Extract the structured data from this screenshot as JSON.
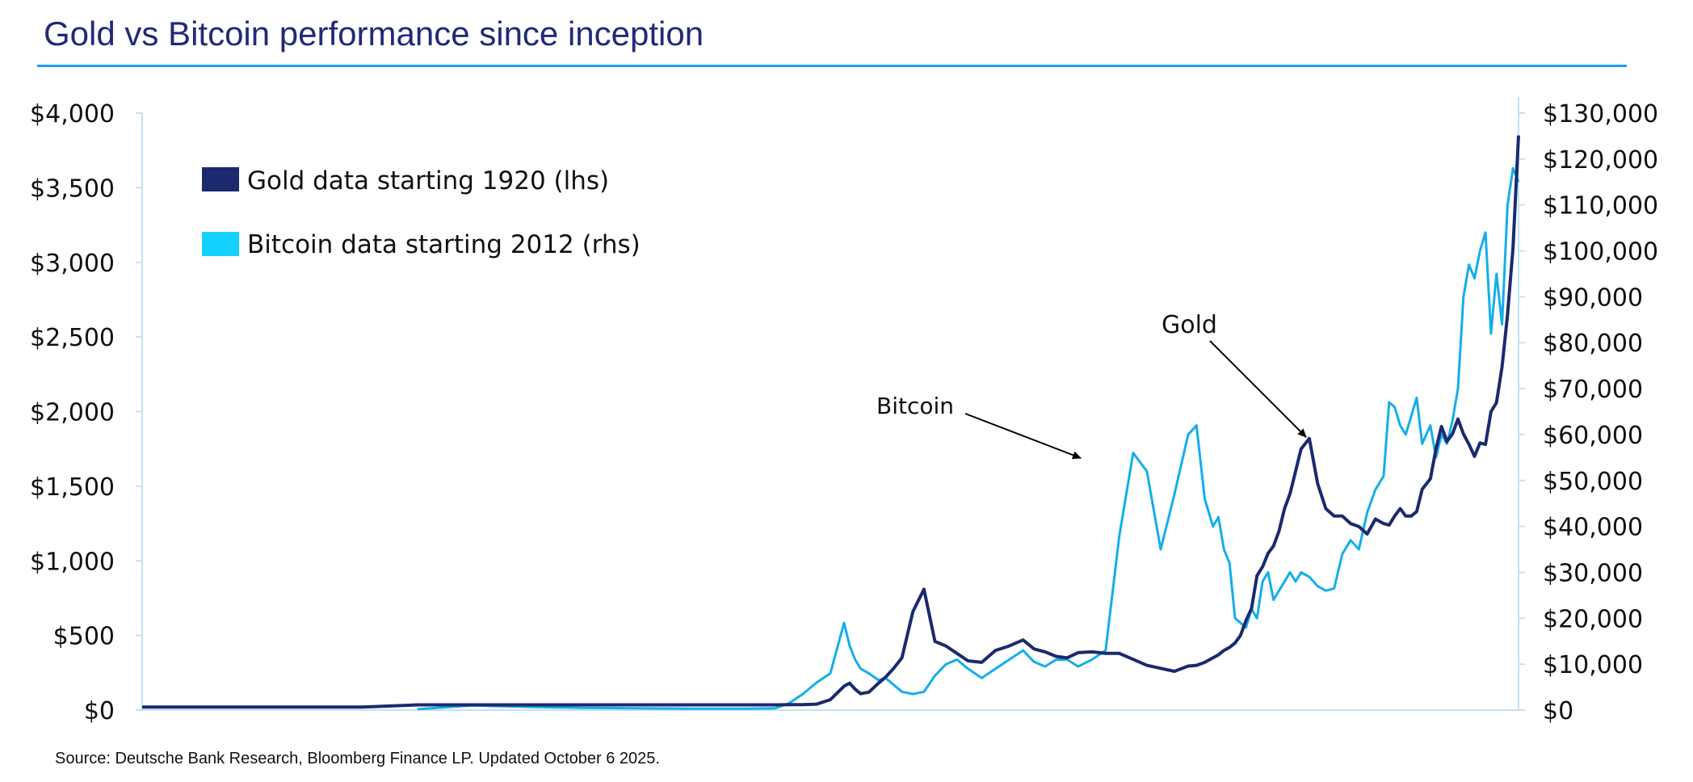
{
  "header": {
    "title": "Gold vs Bitcoin performance since inception"
  },
  "footer": {
    "source": "Source: Deutsche Bank Research, Bloomberg Finance LP. Updated October 6 2025."
  },
  "colors": {
    "title": "#1f2a78",
    "rule": "#1aa3ea",
    "gold": "#1b2a6e",
    "bitcoin": "#14aee9",
    "axis": "#bfe3f5"
  },
  "chart_data": {
    "type": "line",
    "title": "Gold vs Bitcoin performance since inception",
    "x_axis": {
      "label": "",
      "ticks": [],
      "range": [
        0,
        1000
      ]
    },
    "y_left": {
      "range": [
        0,
        4000
      ],
      "ticks": [
        0,
        500,
        1000,
        1500,
        2000,
        2500,
        3000,
        3500,
        4000
      ],
      "tick_labels": [
        "$0",
        "$500",
        "$1,000",
        "$1,500",
        "$2,000",
        "$2,500",
        "$3,000",
        "$3,500",
        "$4,000"
      ]
    },
    "y_right": {
      "range": [
        0,
        130000
      ],
      "ticks": [
        0,
        10000,
        20000,
        30000,
        40000,
        50000,
        60000,
        70000,
        80000,
        90000,
        100000,
        110000,
        120000,
        130000
      ],
      "tick_labels": [
        "$0",
        "$10,000",
        "$20,000",
        "$30,000",
        "$40,000",
        "$50,000",
        "$60,000",
        "$70,000",
        "$80,000",
        "$90,000",
        "$100,000",
        "$110,000",
        "$120,000",
        "$130,000"
      ]
    },
    "legend": {
      "placement": "top-left",
      "entries": [
        {
          "label": "Gold data starting 1920 (lhs)",
          "series": "gold"
        },
        {
          "label": "Bitcoin data starting 2012 (rhs)",
          "series": "bitcoin"
        }
      ]
    },
    "annotations": [
      {
        "text": "Bitcoin",
        "series": "bitcoin"
      },
      {
        "text": "Gold",
        "series": "gold"
      }
    ],
    "series": [
      {
        "name": "Gold data starting 1920 (lhs)",
        "key": "gold",
        "axis": "left",
        "x": [
          0,
          40,
          80,
          120,
          160,
          200,
          240,
          280,
          320,
          360,
          400,
          440,
          460,
          470,
          480,
          490,
          500,
          510,
          514,
          518,
          522,
          528,
          535,
          540,
          546,
          552,
          560,
          568,
          576,
          584,
          592,
          600,
          610,
          620,
          630,
          640,
          648,
          656,
          664,
          672,
          680,
          690,
          700,
          710,
          720,
          730,
          740,
          750,
          760,
          766,
          772,
          778,
          782,
          786,
          790,
          794,
          798,
          802,
          806,
          810,
          814,
          818,
          822,
          826,
          830,
          834,
          838,
          842,
          848,
          854,
          860,
          866,
          872,
          878,
          884,
          890,
          896,
          902,
          906,
          910,
          914,
          918,
          922,
          926,
          930,
          936,
          940,
          944,
          948,
          952,
          956,
          960,
          964,
          968,
          972,
          976,
          980,
          984,
          988,
          992,
          996,
          1000
        ],
        "values": [
          20,
          20,
          20,
          20,
          20,
          35,
          35,
          35,
          35,
          35,
          35,
          35,
          35,
          36,
          36,
          40,
          70,
          160,
          180,
          140,
          110,
          120,
          180,
          220,
          280,
          350,
          660,
          810,
          460,
          430,
          380,
          330,
          320,
          400,
          430,
          470,
          410,
          390,
          360,
          350,
          385,
          390,
          380,
          380,
          340,
          300,
          280,
          260,
          295,
          300,
          320,
          350,
          370,
          400,
          420,
          450,
          500,
          600,
          680,
          900,
          960,
          1050,
          1100,
          1200,
          1350,
          1450,
          1600,
          1750,
          1820,
          1520,
          1350,
          1300,
          1300,
          1250,
          1230,
          1180,
          1280,
          1250,
          1240,
          1300,
          1350,
          1300,
          1300,
          1330,
          1480,
          1550,
          1750,
          1900,
          1800,
          1850,
          1950,
          1850,
          1780,
          1700,
          1790,
          1780,
          2000,
          2060,
          2300,
          2650,
          3100,
          3850
        ]
      },
      {
        "name": "Bitcoin data starting 2012 (rhs)",
        "key": "bitcoin",
        "axis": "right",
        "x": [
          0,
          40,
          80,
          120,
          160,
          200,
          240,
          280,
          320,
          360,
          400,
          440,
          460,
          470,
          480,
          490,
          500,
          510,
          514,
          518,
          522,
          528,
          535,
          540,
          546,
          552,
          560,
          568,
          576,
          584,
          592,
          600,
          610,
          620,
          630,
          640,
          648,
          656,
          664,
          672,
          680,
          690,
          700,
          710,
          720,
          730,
          740,
          750,
          760,
          766,
          772,
          778,
          782,
          786,
          790,
          794,
          798,
          802,
          806,
          810,
          814,
          818,
          822,
          826,
          830,
          834,
          838,
          842,
          848,
          854,
          860,
          866,
          872,
          878,
          884,
          890,
          896,
          902,
          906,
          910,
          914,
          918,
          922,
          926,
          930,
          936,
          940,
          944,
          948,
          952,
          956,
          960,
          964,
          968,
          972,
          976,
          980,
          984,
          988,
          992,
          996,
          1000
        ],
        "values": [
          null,
          null,
          null,
          null,
          null,
          200,
          1000,
          700,
          500,
          400,
          300,
          300,
          400,
          1500,
          3500,
          6000,
          8000,
          19000,
          14000,
          11000,
          9000,
          8000,
          6500,
          7000,
          5500,
          4000,
          3500,
          4000,
          7500,
          10000,
          11000,
          9000,
          7000,
          9000,
          11000,
          13000,
          10500,
          9500,
          11000,
          11000,
          9500,
          11000,
          13000,
          38000,
          56000,
          52000,
          35000,
          47000,
          60000,
          62000,
          46000,
          40000,
          42000,
          35000,
          32000,
          20000,
          19000,
          18000,
          22000,
          20000,
          28000,
          30000,
          24000,
          26000,
          28000,
          30000,
          28000,
          30000,
          29000,
          27000,
          26000,
          26500,
          34000,
          37000,
          35000,
          43000,
          48000,
          51000,
          67000,
          66000,
          62000,
          60000,
          64000,
          68000,
          58000,
          62000,
          55000,
          60000,
          58000,
          63000,
          70000,
          90000,
          97000,
          94000,
          100000,
          104000,
          82000,
          95000,
          84000,
          110000,
          118000,
          115000
        ]
      }
    ]
  }
}
